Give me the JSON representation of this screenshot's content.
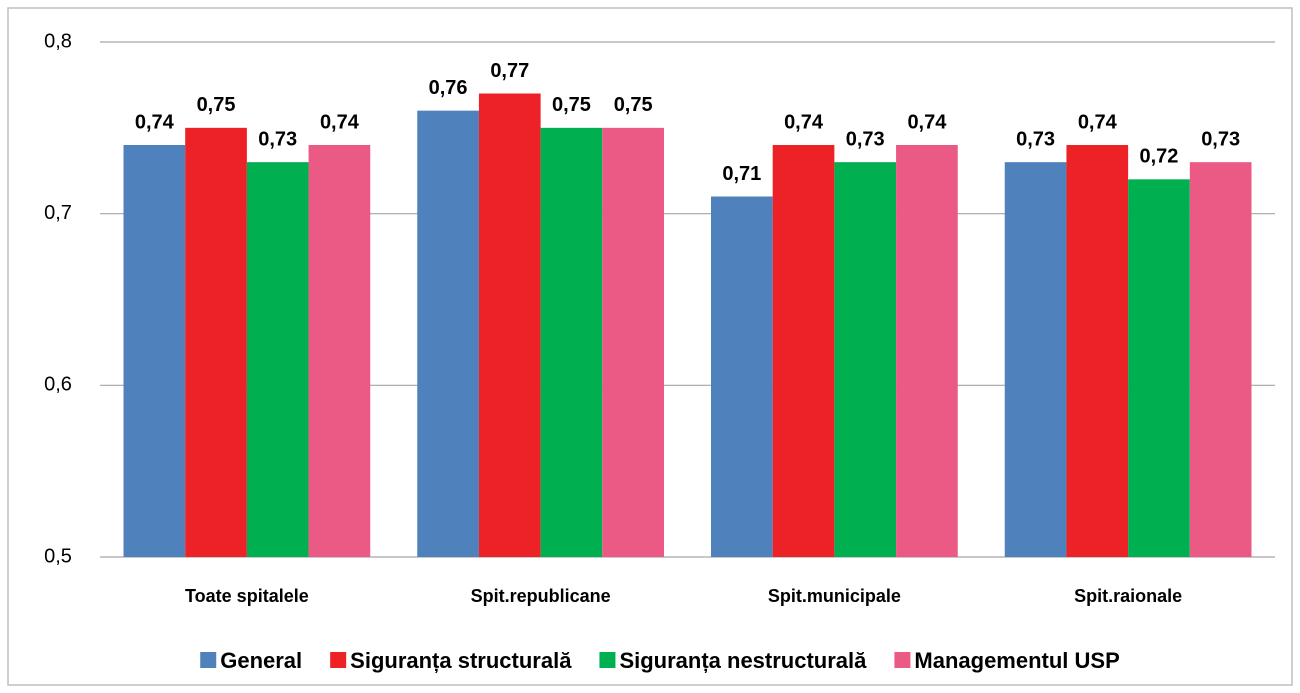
{
  "chart_data": {
    "type": "bar",
    "categories": [
      "Toate spitalele",
      "Spit.republicane",
      "Spit.municipale",
      "Spit.raionale"
    ],
    "series": [
      {
        "name": "General",
        "color": "#4f81bd",
        "values": [
          0.74,
          0.76,
          0.71,
          0.73
        ],
        "value_labels": [
          "0,74",
          "0,76",
          "0,71",
          "0,73"
        ]
      },
      {
        "name": "Siguranța structurală",
        "color": "#ed2226",
        "values": [
          0.75,
          0.77,
          0.74,
          0.74
        ],
        "value_labels": [
          "0,75",
          "0,77",
          "0,74",
          "0,74"
        ]
      },
      {
        "name": "Siguranța nestructurală",
        "color": "#00b050",
        "values": [
          0.73,
          0.75,
          0.73,
          0.72
        ],
        "value_labels": [
          "0,73",
          "0,75",
          "0,73",
          "0,72"
        ]
      },
      {
        "name": "Managementul USP",
        "color": "#eb5a85",
        "values": [
          0.74,
          0.75,
          0.74,
          0.73
        ],
        "value_labels": [
          "0,74",
          "0,75",
          "0,74",
          "0,73"
        ]
      }
    ],
    "ylim": [
      0.5,
      0.8
    ],
    "yticks": [
      {
        "value": 0.5,
        "label": "0,5"
      },
      {
        "value": 0.6,
        "label": "0,6"
      },
      {
        "value": 0.7,
        "label": "0,7"
      },
      {
        "value": 0.8,
        "label": "0,8"
      }
    ],
    "grid": true,
    "legend": "bottom"
  }
}
